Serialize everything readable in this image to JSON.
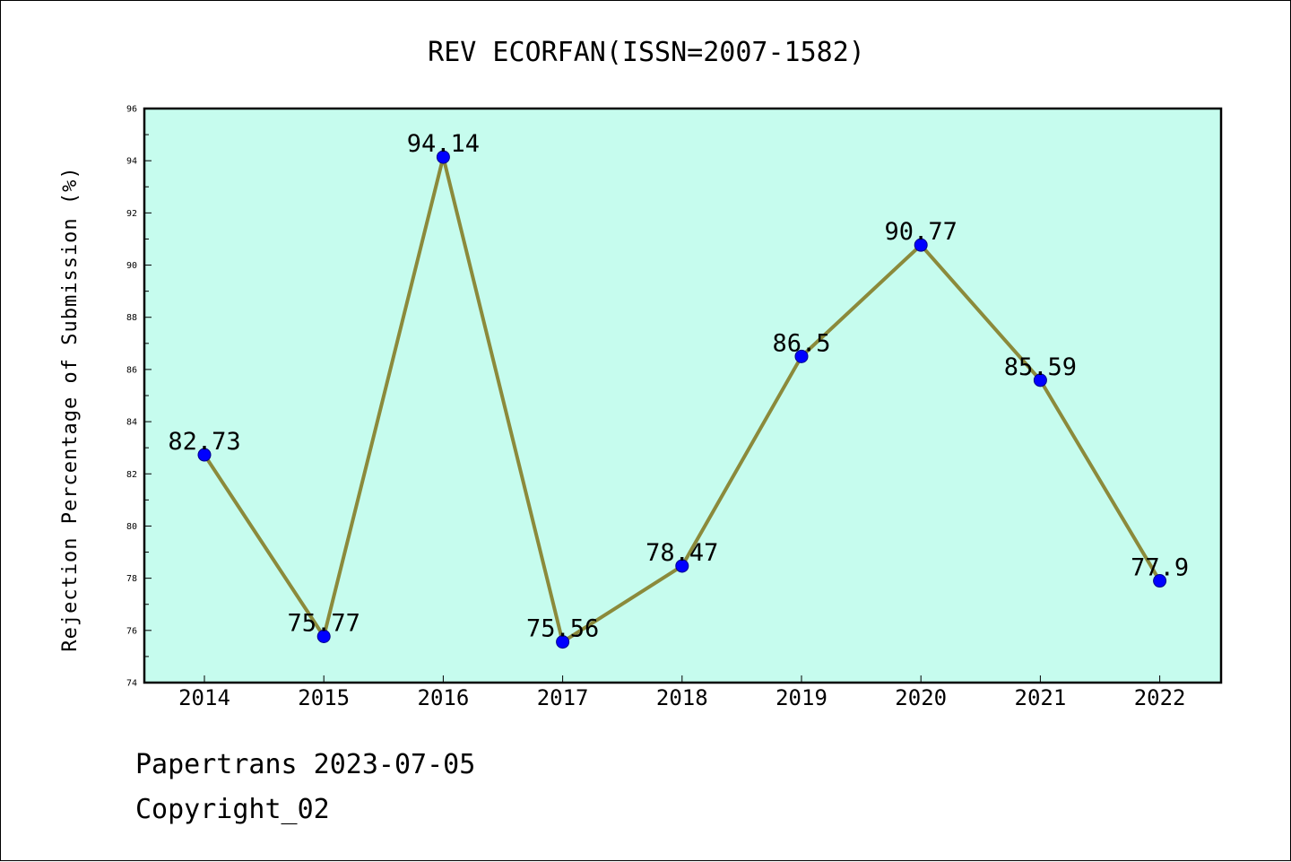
{
  "chart_data": {
    "type": "line",
    "title": "REV ECORFAN(ISSN=2007-1582)",
    "xlabel": "",
    "ylabel": "Rejection Percentage of Submission (%)",
    "categories": [
      "2014",
      "2015",
      "2016",
      "2017",
      "2018",
      "2019",
      "2020",
      "2021",
      "2022"
    ],
    "values": [
      82.73,
      75.77,
      94.14,
      75.56,
      78.47,
      86.5,
      90.77,
      85.59,
      77.9
    ],
    "data_labels": [
      "82.73",
      "75.77",
      "94.14",
      "75.56",
      "78.47",
      "86.5",
      "90.77",
      "85.59",
      "77.9"
    ],
    "ylim": [
      74,
      96
    ],
    "yticks": [
      "74",
      "76",
      "78",
      "80",
      "82",
      "84",
      "86",
      "88",
      "90",
      "92",
      "94",
      "96"
    ],
    "grid": false,
    "legend": "none",
    "colors": {
      "plot_background": "#c6fcee",
      "line": "#8b8a3b",
      "marker": "#0000ff"
    }
  },
  "footer": {
    "source": "Papertrans 2023-07-05",
    "copyright": "Copyright_02"
  }
}
